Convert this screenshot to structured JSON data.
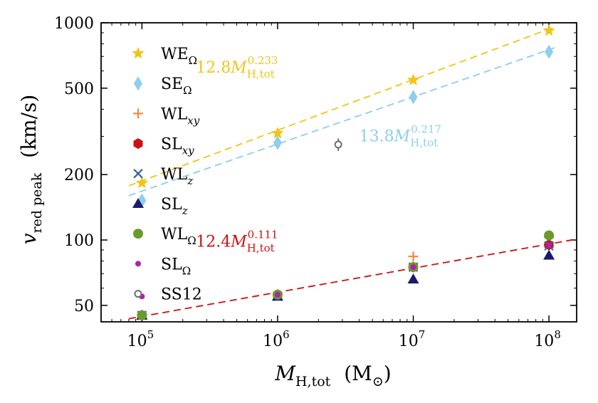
{
  "chart_data": {
    "type": "scatter",
    "x_scale": "log",
    "y_scale": "log",
    "xlim": [
      50000,
      160000000
    ],
    "ylim": [
      42,
      1000
    ],
    "xlabel": {
      "base": "M",
      "sub": "H,tot",
      "unit": "(M",
      "unit_sub": "⊙",
      "unit_close": ")"
    },
    "ylabel": {
      "base": "v",
      "sub": "red peak",
      "unit": "(km/s)"
    },
    "x_ticks": [
      {
        "value": 100000,
        "base": "10",
        "exp": "5"
      },
      {
        "value": 1000000,
        "base": "10",
        "exp": "6"
      },
      {
        "value": 10000000,
        "base": "10",
        "exp": "7"
      },
      {
        "value": 100000000,
        "base": "10",
        "exp": "8"
      }
    ],
    "y_ticks": [
      {
        "value": 50,
        "label": "50"
      },
      {
        "value": 100,
        "label": "100"
      },
      {
        "value": 200,
        "label": "200"
      },
      {
        "value": 500,
        "label": "500"
      },
      {
        "value": 1000,
        "label": "1000"
      }
    ],
    "series": [
      {
        "name": "WE",
        "sub": "Ω",
        "sub_italic": false,
        "marker": "star",
        "color": "#f2c417",
        "x": [
          100000,
          1000000,
          10000000,
          100000000
        ],
        "y": [
          183,
          310,
          545,
          920
        ]
      },
      {
        "name": "SE",
        "sub": "Ω",
        "sub_italic": false,
        "marker": "diamond",
        "color": "#8dcfec",
        "x": [
          100000,
          1000000,
          10000000,
          100000000
        ],
        "y": [
          152,
          280,
          455,
          735
        ]
      },
      {
        "name": "WL",
        "sub": "xy",
        "sub_italic": true,
        "marker": "plus",
        "color": "#f1883e",
        "x": [
          100000,
          1000000,
          10000000,
          100000000
        ],
        "y": [
          45,
          56,
          84,
          103
        ]
      },
      {
        "name": "SL",
        "sub": "xy",
        "sub_italic": true,
        "marker": "hexagon",
        "color": "#cc1111",
        "x": [
          100000,
          1000000,
          10000000,
          100000000
        ],
        "y": [
          45,
          56,
          75,
          95
        ]
      },
      {
        "name": "WL",
        "sub": "z",
        "sub_italic": true,
        "marker": "x",
        "color": "#336699",
        "x": [
          100000,
          1000000,
          10000000,
          100000000
        ],
        "y": [
          45,
          55,
          75,
          94
        ]
      },
      {
        "name": "SL",
        "sub": "z",
        "sub_italic": true,
        "marker": "triangle",
        "color": "#1a1a6e",
        "x": [
          100000,
          1000000,
          10000000,
          100000000
        ],
        "y": [
          45,
          55,
          66,
          85
        ]
      },
      {
        "name": "WL",
        "sub": "Ω",
        "sub_italic": false,
        "marker": "circle",
        "color": "#6b9b2a",
        "x": [
          100000,
          1000000,
          10000000,
          100000000
        ],
        "y": [
          45,
          56,
          75,
          105
        ]
      },
      {
        "name": "SL",
        "sub": "Ω",
        "sub_italic": false,
        "marker": "dot",
        "color": "#b020b0",
        "x": [
          100000,
          1000000,
          10000000,
          100000000
        ],
        "y": [
          55,
          56,
          75,
          95
        ]
      },
      {
        "name": "SS12",
        "sub": "",
        "sub_italic": false,
        "marker": "ring",
        "color": "#6e6e6e",
        "x": [
          2800000
        ],
        "y": [
          275
        ],
        "err": [
          18
        ]
      }
    ],
    "fits": [
      {
        "coef": 12.8,
        "exp": 0.233,
        "color": "#f2c417",
        "x_range": [
          80000,
          110000000
        ],
        "label_coef": "12.8",
        "label_exp": "0.233",
        "label_anchor": "x_data",
        "label_x": 250000,
        "label_y": 590
      },
      {
        "coef": 13.8,
        "exp": 0.217,
        "color": "#8dcfec",
        "x_range": [
          80000,
          110000000
        ],
        "label_coef": "13.8",
        "label_exp": "0.217",
        "label_x": 4000000,
        "label_y": 285
      },
      {
        "coef": 12.4,
        "exp": 0.111,
        "color": "#cc1111",
        "x_range": [
          80000,
          160000000
        ],
        "label_coef": "12.4",
        "label_exp": "0.111",
        "label_x": 250000,
        "label_y": 93
      }
    ],
    "fit_label_base": "M",
    "fit_label_sub": "H,tot",
    "legend_position": "upper-left"
  }
}
